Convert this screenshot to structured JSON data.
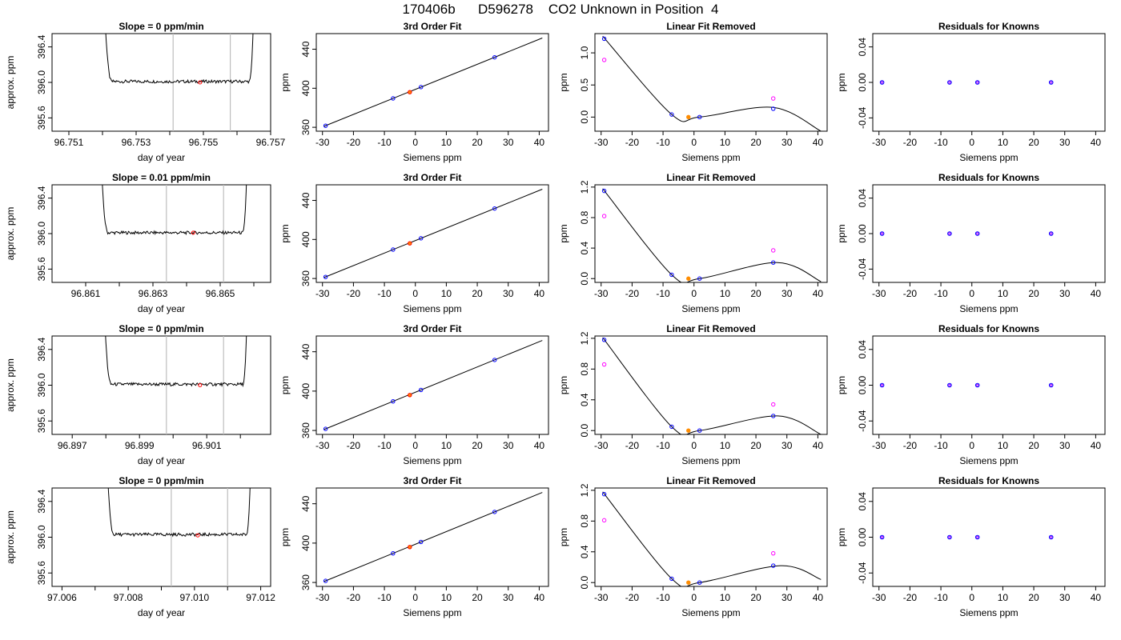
{
  "figure": {
    "title": "170406b      D596278    CO2 Unknown in Position  4"
  },
  "chart_data": [
    {
      "type": "line",
      "row": 0,
      "col": 0,
      "title": "Slope =  0  ppm/min",
      "xlabel": "day of year",
      "ylabel": "approx. ppm",
      "xlim": [
        96.7505,
        96.757
      ],
      "ylim": [
        395.45,
        396.55
      ],
      "xticks": [
        96.751,
        96.752,
        96.753,
        96.754,
        96.755,
        96.756,
        96.757
      ],
      "xticklabels": [
        "96.751",
        "",
        "96.753",
        "",
        "96.755",
        "",
        "96.757"
      ],
      "yticks": [
        395.6,
        396.0,
        396.4
      ],
      "yticklabels": [
        "395.6",
        "396.0",
        "396.4"
      ],
      "vlines": [
        96.7541,
        96.7558
      ],
      "trace": {
        "start": 96.7519,
        "end": 96.7566,
        "level": 396.01
      },
      "marker": {
        "x": 96.7549,
        "y": 396.0
      }
    },
    {
      "type": "line",
      "row": 0,
      "col": 1,
      "title": "3rd Order Fit",
      "xlabel": "Siemens ppm",
      "ylabel": "ppm",
      "xlim": [
        -32,
        43
      ],
      "ylim": [
        356,
        456
      ],
      "xticks": [
        -30,
        -20,
        -10,
        0,
        10,
        20,
        30,
        40
      ],
      "xticklabels": [
        "-30",
        "-20",
        "-10",
        "0",
        "10",
        "20",
        "30",
        "40"
      ],
      "yticks": [
        360,
        400,
        440
      ],
      "yticklabels": [
        "360",
        "400",
        "440"
      ],
      "fit_line": [
        [
          -29.5,
          361.0
        ],
        [
          41.0,
          451.5
        ]
      ],
      "known_points": [
        [
          -29.0,
          361.6
        ],
        [
          -7.2,
          389.6
        ],
        [
          1.8,
          401.2
        ],
        [
          25.6,
          431.7
        ]
      ],
      "unknown_point": [
        -1.8,
        396.0
      ]
    },
    {
      "type": "line",
      "row": 0,
      "col": 2,
      "title": "Linear Fit Removed",
      "xlabel": "Siemens ppm",
      "ylabel": "ppm",
      "xlim": [
        -32,
        43
      ],
      "ylim": [
        -0.22,
        1.3
      ],
      "xticks": [
        -30,
        -20,
        -10,
        0,
        10,
        20,
        30,
        40
      ],
      "xticklabels": [
        "-30",
        "-20",
        "-10",
        "0",
        "10",
        "20",
        "30",
        "40"
      ],
      "yticks": [
        0.0,
        0.5,
        1.0
      ],
      "yticklabels": [
        "0.0",
        "0.5",
        "1.0"
      ],
      "curve_points": [
        [
          -29.5,
          1.26
        ],
        [
          -7.2,
          0.04
        ],
        [
          1.8,
          0.0
        ],
        [
          25.6,
          0.15
        ],
        [
          41.0,
          -0.22
        ]
      ],
      "known_points": [
        [
          -29.0,
          1.22
        ],
        [
          -7.2,
          0.04
        ],
        [
          1.8,
          0.0
        ],
        [
          25.6,
          0.13
        ]
      ],
      "unknown_point": [
        -1.8,
        0.0
      ],
      "magenta_points": [
        [
          -29.0,
          0.89
        ],
        [
          25.6,
          0.29
        ]
      ]
    },
    {
      "type": "scatter",
      "row": 0,
      "col": 3,
      "title": "Residuals for Knowns",
      "xlabel": "Siemens ppm",
      "ylabel": "ppm",
      "xlim": [
        -32,
        43
      ],
      "ylim": [
        -0.055,
        0.055
      ],
      "xticks": [
        -30,
        -20,
        -10,
        0,
        10,
        20,
        30,
        40
      ],
      "xticklabels": [
        "-30",
        "-20",
        "-10",
        "0",
        "10",
        "20",
        "30",
        "40"
      ],
      "yticks": [
        -0.04,
        0.0,
        0.04
      ],
      "yticklabels": [
        "-0.04",
        "0.00",
        "0.04"
      ],
      "points": [
        [
          -29.0,
          0.0
        ],
        [
          -7.2,
          0.0
        ],
        [
          1.8,
          0.0
        ],
        [
          25.6,
          0.0
        ]
      ]
    },
    {
      "type": "line",
      "row": 1,
      "col": 0,
      "title": "Slope =  0.01  ppm/min",
      "xlabel": "day of year",
      "ylabel": "approx. ppm",
      "xlim": [
        96.86,
        96.8665
      ],
      "ylim": [
        395.45,
        396.55
      ],
      "xticks": [
        96.861,
        96.862,
        96.863,
        96.864,
        96.865,
        96.866
      ],
      "xticklabels": [
        "96.861",
        "",
        "96.863",
        "",
        "96.865",
        ""
      ],
      "yticks": [
        395.6,
        396.0,
        396.4
      ],
      "yticklabels": [
        "395.6",
        "396.0",
        "396.4"
      ],
      "vlines": [
        96.8634,
        96.8651
      ],
      "trace": {
        "start": 96.8613,
        "end": 96.8659,
        "level": 396.01
      },
      "marker": {
        "x": 96.8642,
        "y": 396.01
      }
    },
    {
      "type": "line",
      "row": 1,
      "col": 1,
      "title": "3rd Order Fit",
      "xlabel": "Siemens ppm",
      "ylabel": "ppm",
      "xlim": [
        -32,
        43
      ],
      "ylim": [
        356,
        456
      ],
      "xticks": [
        -30,
        -20,
        -10,
        0,
        10,
        20,
        30,
        40
      ],
      "xticklabels": [
        "-30",
        "-20",
        "-10",
        "0",
        "10",
        "20",
        "30",
        "40"
      ],
      "yticks": [
        360,
        400,
        440
      ],
      "yticklabels": [
        "360",
        "400",
        "440"
      ],
      "fit_line": [
        [
          -29.5,
          361.0
        ],
        [
          41.0,
          451.5
        ]
      ],
      "known_points": [
        [
          -29.0,
          361.6
        ],
        [
          -7.2,
          389.6
        ],
        [
          1.8,
          401.2
        ],
        [
          25.6,
          431.7
        ]
      ],
      "unknown_point": [
        -1.8,
        396.0
      ]
    },
    {
      "type": "line",
      "row": 1,
      "col": 2,
      "title": "Linear Fit Removed",
      "xlabel": "Siemens ppm",
      "ylabel": "ppm",
      "xlim": [
        -32,
        43
      ],
      "ylim": [
        -0.05,
        1.23
      ],
      "xticks": [
        -30,
        -20,
        -10,
        0,
        10,
        20,
        30,
        40
      ],
      "xticklabels": [
        "-30",
        "-20",
        "-10",
        "0",
        "10",
        "20",
        "30",
        "40"
      ],
      "yticks": [
        0.0,
        0.4,
        0.8,
        1.2
      ],
      "yticklabels": [
        "0.0",
        "0.4",
        "0.8",
        "1.2"
      ],
      "curve_points": [
        [
          -29.5,
          1.18
        ],
        [
          -7.2,
          0.05
        ],
        [
          1.8,
          0.0
        ],
        [
          27.0,
          0.21
        ],
        [
          41.0,
          -0.04
        ]
      ],
      "known_points": [
        [
          -29.0,
          1.15
        ],
        [
          -7.2,
          0.05
        ],
        [
          1.8,
          0.0
        ],
        [
          25.6,
          0.21
        ]
      ],
      "unknown_point": [
        -1.8,
        0.0
      ],
      "magenta_points": [
        [
          -29.0,
          0.82
        ],
        [
          25.6,
          0.37
        ]
      ]
    },
    {
      "type": "scatter",
      "row": 1,
      "col": 3,
      "title": "Residuals for Knowns",
      "xlabel": "Siemens ppm",
      "ylabel": "ppm",
      "xlim": [
        -32,
        43
      ],
      "ylim": [
        -0.055,
        0.055
      ],
      "xticks": [
        -30,
        -20,
        -10,
        0,
        10,
        20,
        30,
        40
      ],
      "xticklabels": [
        "-30",
        "-20",
        "-10",
        "0",
        "10",
        "20",
        "30",
        "40"
      ],
      "yticks": [
        -0.04,
        0.0,
        0.04
      ],
      "yticklabels": [
        "-0.04",
        "0.00",
        "0.04"
      ],
      "points": [
        [
          -29.0,
          0.0
        ],
        [
          -7.2,
          0.0
        ],
        [
          1.8,
          0.0
        ],
        [
          25.6,
          0.0
        ]
      ]
    },
    {
      "type": "line",
      "row": 2,
      "col": 0,
      "title": "Slope =  0  ppm/min",
      "xlabel": "day of year",
      "ylabel": "approx. ppm",
      "xlim": [
        96.8964,
        96.9029
      ],
      "ylim": [
        395.45,
        396.55
      ],
      "xticks": [
        96.897,
        96.898,
        96.899,
        96.9,
        96.901,
        96.902
      ],
      "xticklabels": [
        "96.897",
        "",
        "96.899",
        "",
        "96.901",
        ""
      ],
      "yticks": [
        395.6,
        396.0,
        396.4
      ],
      "yticklabels": [
        "395.6",
        "396.0",
        "396.4"
      ],
      "vlines": [
        96.8998,
        96.9015
      ],
      "trace": {
        "start": 96.8978,
        "end": 96.9023,
        "level": 396.01
      },
      "marker": {
        "x": 96.9008,
        "y": 396.0
      }
    },
    {
      "type": "line",
      "row": 2,
      "col": 1,
      "title": "3rd Order Fit",
      "xlabel": "Siemens ppm",
      "ylabel": "ppm",
      "xlim": [
        -32,
        43
      ],
      "ylim": [
        356,
        456
      ],
      "xticks": [
        -30,
        -20,
        -10,
        0,
        10,
        20,
        30,
        40
      ],
      "xticklabels": [
        "-30",
        "-20",
        "-10",
        "0",
        "10",
        "20",
        "30",
        "40"
      ],
      "yticks": [
        360,
        400,
        440
      ],
      "yticklabels": [
        "360",
        "400",
        "440"
      ],
      "fit_line": [
        [
          -29.5,
          361.0
        ],
        [
          41.0,
          451.5
        ]
      ],
      "known_points": [
        [
          -29.0,
          361.6
        ],
        [
          -7.2,
          389.6
        ],
        [
          1.8,
          401.2
        ],
        [
          25.6,
          431.7
        ]
      ],
      "unknown_point": [
        -1.8,
        396.0
      ]
    },
    {
      "type": "line",
      "row": 2,
      "col": 2,
      "title": "Linear Fit Removed",
      "xlabel": "Siemens ppm",
      "ylabel": "ppm",
      "xlim": [
        -32,
        43
      ],
      "ylim": [
        -0.05,
        1.23
      ],
      "xticks": [
        -30,
        -20,
        -10,
        0,
        10,
        20,
        30,
        40
      ],
      "xticklabels": [
        "-30",
        "-20",
        "-10",
        "0",
        "10",
        "20",
        "30",
        "40"
      ],
      "yticks": [
        0.0,
        0.4,
        0.8,
        1.2
      ],
      "yticklabels": [
        "0.0",
        "0.4",
        "0.8",
        "1.2"
      ],
      "curve_points": [
        [
          -29.5,
          1.21
        ],
        [
          -7.2,
          0.05
        ],
        [
          1.8,
          0.0
        ],
        [
          27.0,
          0.19
        ],
        [
          41.0,
          -0.05
        ]
      ],
      "known_points": [
        [
          -29.0,
          1.18
        ],
        [
          -7.2,
          0.05
        ],
        [
          1.8,
          0.0
        ],
        [
          25.6,
          0.19
        ]
      ],
      "unknown_point": [
        -1.8,
        0.0
      ],
      "magenta_points": [
        [
          -29.0,
          0.86
        ],
        [
          25.6,
          0.34
        ]
      ]
    },
    {
      "type": "scatter",
      "row": 2,
      "col": 3,
      "title": "Residuals for Knowns",
      "xlabel": "Siemens ppm",
      "ylabel": "ppm",
      "xlim": [
        -32,
        43
      ],
      "ylim": [
        -0.055,
        0.055
      ],
      "xticks": [
        -30,
        -20,
        -10,
        0,
        10,
        20,
        30,
        40
      ],
      "xticklabels": [
        "-30",
        "-20",
        "-10",
        "0",
        "10",
        "20",
        "30",
        "40"
      ],
      "yticks": [
        -0.04,
        0.0,
        0.04
      ],
      "yticklabels": [
        "-0.04",
        "0.00",
        "0.04"
      ],
      "points": [
        [
          -29.0,
          0.0
        ],
        [
          -7.2,
          0.0
        ],
        [
          1.8,
          0.0
        ],
        [
          25.6,
          0.0
        ]
      ]
    },
    {
      "type": "line",
      "row": 3,
      "col": 0,
      "title": "Slope =  0  ppm/min",
      "xlabel": "day of year",
      "ylabel": "approx. ppm",
      "xlim": [
        97.0057,
        97.0123
      ],
      "ylim": [
        395.45,
        396.55
      ],
      "xticks": [
        97.006,
        97.007,
        97.008,
        97.009,
        97.01,
        97.011,
        97.012
      ],
      "xticklabels": [
        "97.006",
        "",
        "97.008",
        "",
        "97.010",
        "",
        "97.012"
      ],
      "yticks": [
        395.6,
        396.0,
        396.4
      ],
      "yticklabels": [
        "395.6",
        "396.0",
        "396.4"
      ],
      "vlines": [
        97.0093,
        97.011
      ],
      "trace": {
        "start": 97.0072,
        "end": 97.0118,
        "level": 396.03
      },
      "marker": {
        "x": 97.0101,
        "y": 396.02
      }
    },
    {
      "type": "line",
      "row": 3,
      "col": 1,
      "title": "3rd Order Fit",
      "xlabel": "Siemens ppm",
      "ylabel": "ppm",
      "xlim": [
        -32,
        43
      ],
      "ylim": [
        356,
        456
      ],
      "xticks": [
        -30,
        -20,
        -10,
        0,
        10,
        20,
        30,
        40
      ],
      "xticklabels": [
        "-30",
        "-20",
        "-10",
        "0",
        "10",
        "20",
        "30",
        "40"
      ],
      "yticks": [
        360,
        400,
        440
      ],
      "yticklabels": [
        "360",
        "400",
        "440"
      ],
      "fit_line": [
        [
          -29.5,
          361.0
        ],
        [
          41.0,
          451.5
        ]
      ],
      "known_points": [
        [
          -29.0,
          361.6
        ],
        [
          -7.2,
          389.6
        ],
        [
          1.8,
          401.2
        ],
        [
          25.6,
          431.7
        ]
      ],
      "unknown_point": [
        -1.8,
        396.0
      ]
    },
    {
      "type": "line",
      "row": 3,
      "col": 2,
      "title": "Linear Fit Removed",
      "xlabel": "Siemens ppm",
      "ylabel": "ppm",
      "xlim": [
        -32,
        43
      ],
      "ylim": [
        -0.05,
        1.23
      ],
      "xticks": [
        -30,
        -20,
        -10,
        0,
        10,
        20,
        30,
        40
      ],
      "xticklabels": [
        "-30",
        "-20",
        "-10",
        "0",
        "10",
        "20",
        "30",
        "40"
      ],
      "yticks": [
        0.0,
        0.4,
        0.8,
        1.2
      ],
      "yticklabels": [
        "0.0",
        "0.4",
        "0.8",
        "1.2"
      ],
      "curve_points": [
        [
          -29.5,
          1.18
        ],
        [
          -7.2,
          0.05
        ],
        [
          1.8,
          0.0
        ],
        [
          28.0,
          0.22
        ],
        [
          41.0,
          0.04
        ]
      ],
      "known_points": [
        [
          -29.0,
          1.15
        ],
        [
          -7.2,
          0.05
        ],
        [
          1.8,
          0.0
        ],
        [
          25.6,
          0.22
        ]
      ],
      "unknown_point": [
        -1.8,
        0.0
      ],
      "magenta_points": [
        [
          -29.0,
          0.81
        ],
        [
          25.6,
          0.38
        ]
      ]
    },
    {
      "type": "scatter",
      "row": 3,
      "col": 3,
      "title": "Residuals for Knowns",
      "xlabel": "Siemens ppm",
      "ylabel": "ppm",
      "xlim": [
        -32,
        43
      ],
      "ylim": [
        -0.055,
        0.055
      ],
      "xticks": [
        -30,
        -20,
        -10,
        0,
        10,
        20,
        30,
        40
      ],
      "xticklabels": [
        "-30",
        "-20",
        "-10",
        "0",
        "10",
        "20",
        "30",
        "40"
      ],
      "yticks": [
        -0.04,
        0.0,
        0.04
      ],
      "yticklabels": [
        "-0.04",
        "0.00",
        "0.04"
      ],
      "points": [
        [
          -29.0,
          0.0
        ],
        [
          -7.2,
          0.0
        ],
        [
          1.8,
          0.0
        ],
        [
          25.6,
          0.0
        ]
      ]
    }
  ],
  "colors": {
    "known": "#0000ff",
    "unknown": "#ff0000",
    "unknown_fill": "#ff8c00",
    "magenta": "#ff00ff",
    "residual_outer": "#0000ff",
    "residual_inner": "#a000ff",
    "vline": "#bebebe",
    "line": "#000000"
  }
}
